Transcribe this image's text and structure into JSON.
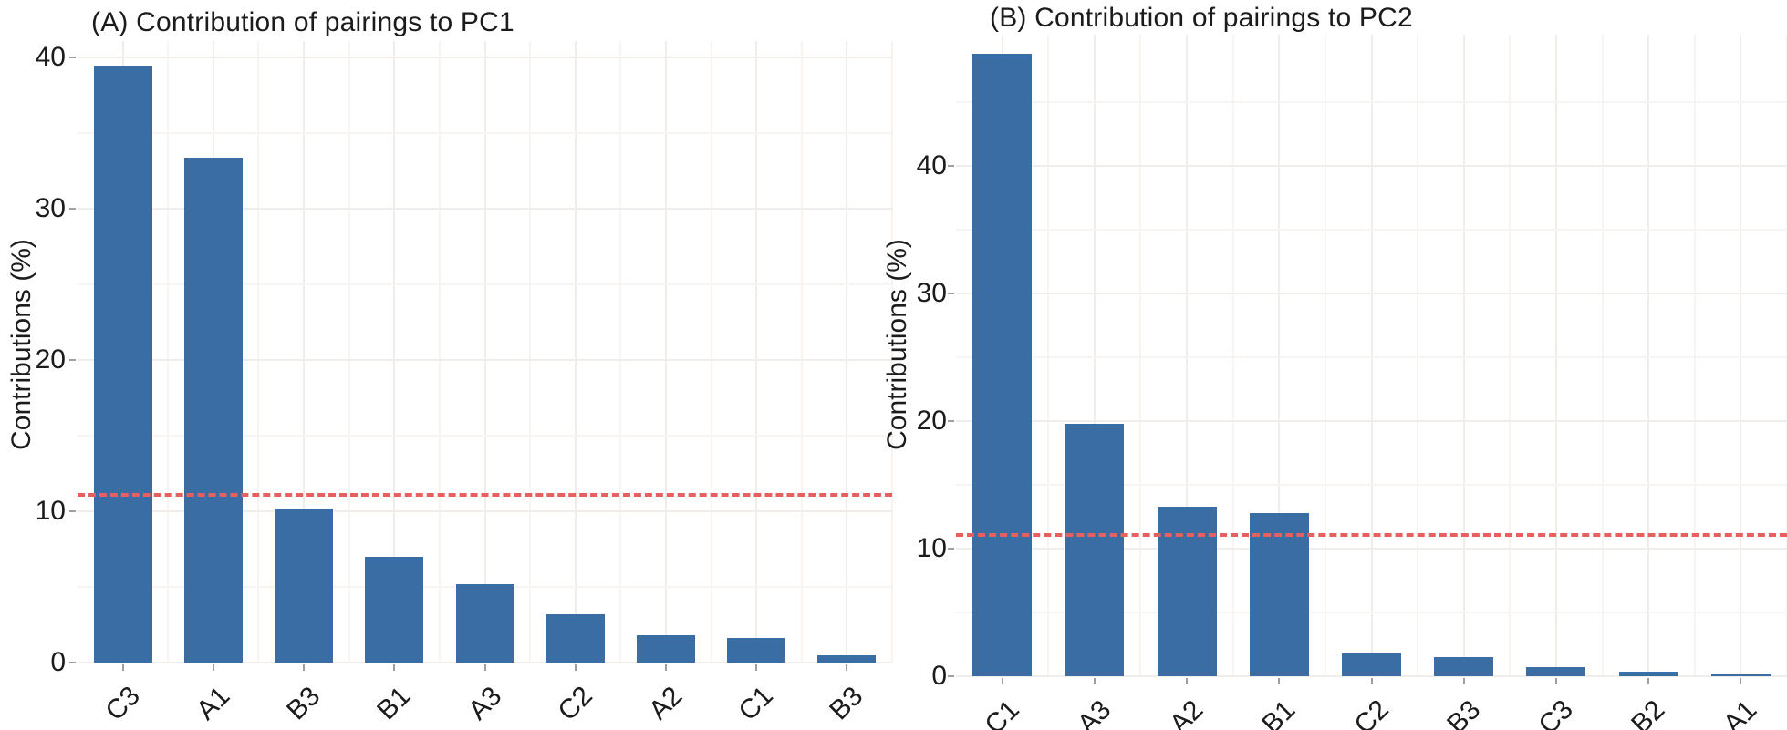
{
  "figure": {
    "background": "#ffffff",
    "bar_color": "#3a6da4",
    "ref_line_color": "#e66060",
    "grid_major_color": "#f1edeb",
    "grid_minor_color": "#f7f4f2",
    "text_color": "#1b1b1b",
    "tick_mark_color": "#9f9f9f"
  },
  "chart_data": [
    {
      "type": "bar",
      "panel": "A",
      "title": "(A) Contribution of pairings to PC1",
      "ylabel": "Contributions (%)",
      "xlabel": "",
      "categories": [
        "C3",
        "A1",
        "B3",
        "B1",
        "A3",
        "C2",
        "A2",
        "C1",
        "B3"
      ],
      "values": [
        39.5,
        33.4,
        10.2,
        7.0,
        5.2,
        3.2,
        1.8,
        1.6,
        0.5
      ],
      "yticks": [
        0,
        10,
        20,
        30,
        40
      ],
      "minor_yticks": [
        5,
        15,
        25,
        35
      ],
      "ylim": [
        0,
        41.1
      ],
      "ref_line": 11.1,
      "ref_line_style": "dashed",
      "grid": true,
      "legend": false
    },
    {
      "type": "bar",
      "panel": "B",
      "title": "(B) Contribution of pairings to PC2",
      "ylabel": "Contributions (%)",
      "xlabel": "",
      "categories": [
        "C1",
        "A3",
        "A2",
        "B1",
        "C2",
        "B3",
        "C3",
        "B2",
        "A1"
      ],
      "values": [
        48.8,
        19.8,
        13.3,
        12.8,
        1.8,
        1.5,
        0.7,
        0.35,
        0.15
      ],
      "yticks": [
        0,
        10,
        20,
        30,
        40
      ],
      "minor_yticks": [
        5,
        15,
        25,
        35,
        45
      ],
      "ylim": [
        0,
        50.3
      ],
      "ref_line": 11.1,
      "ref_line_style": "dashed",
      "grid": true,
      "legend": false
    }
  ]
}
